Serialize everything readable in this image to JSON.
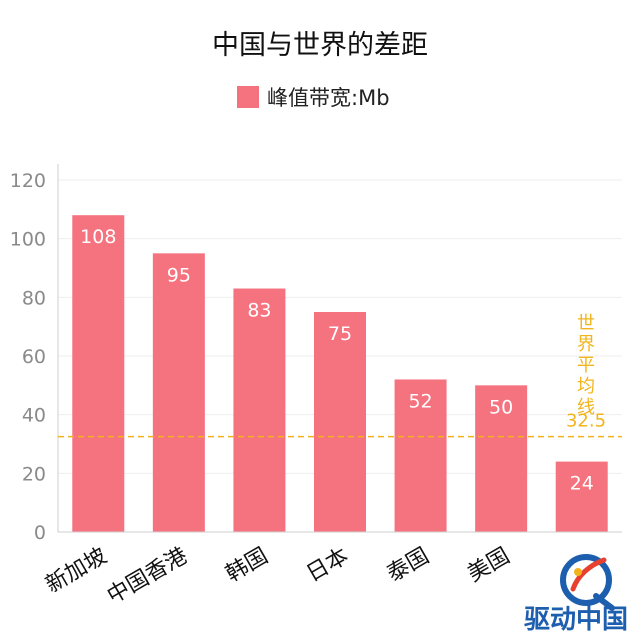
{
  "chart_data": {
    "type": "bar",
    "title": "中国与世界的差距",
    "categories": [
      "新加坡",
      "中国香港",
      "韩国",
      "日本",
      "泰国",
      "美国",
      ""
    ],
    "series": [
      {
        "name": "峰值带宽:Mb",
        "values": [
          108,
          95,
          83,
          75,
          52,
          50,
          24
        ],
        "color": "#f5727f"
      }
    ],
    "ylim": [
      0,
      120
    ],
    "yticks": [
      0,
      20,
      40,
      60,
      80,
      100,
      120
    ],
    "grid": true,
    "legend": "top-center",
    "reference_line": {
      "label_chars": [
        "世",
        "界",
        "平",
        "均",
        "线"
      ],
      "value": 32.5,
      "value_label": "32.5",
      "color": "#f2b41d",
      "style": "dashed"
    }
  },
  "watermark": {
    "text": "驱动中国",
    "color": "#1d5fae"
  }
}
